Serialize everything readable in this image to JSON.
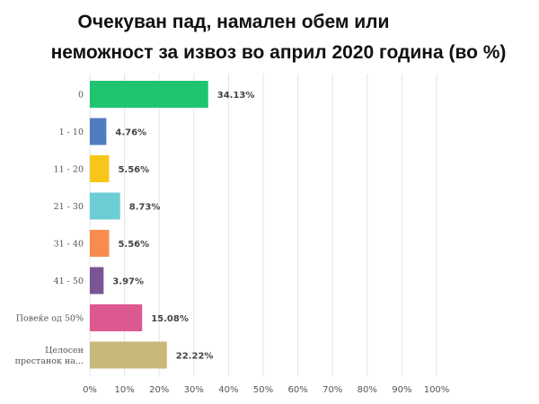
{
  "title_line1": "Очекуван пад, намален обем или",
  "title_line2": "неможност за извоз во април 2020 година (во %)",
  "chart_data": {
    "type": "bar",
    "orientation": "horizontal",
    "categories": [
      "0",
      "1 - 10",
      "11 - 20",
      "21 - 30",
      "31 - 40",
      "41 - 50",
      "Повеќе од 50%",
      "Целосен престанок на..."
    ],
    "category_lines": [
      [
        "0"
      ],
      [
        "1 - 10"
      ],
      [
        "11 - 20"
      ],
      [
        "21 - 30"
      ],
      [
        "31 - 40"
      ],
      [
        "41 - 50"
      ],
      [
        "Повеќе од 50%"
      ],
      [
        "Целосен",
        "престанок на..."
      ]
    ],
    "values": [
      34.13,
      4.76,
      5.56,
      8.73,
      5.56,
      3.97,
      15.08,
      22.22
    ],
    "value_labels": [
      "34.13%",
      "4.76%",
      "5.56%",
      "8.73%",
      "5.56%",
      "3.97%",
      "15.08%",
      "22.22%"
    ],
    "colors": [
      "#1ec46f",
      "#4f7dc0",
      "#f7c61a",
      "#6ccdd4",
      "#f98b4e",
      "#7a5593",
      "#dc5890",
      "#c8b87a"
    ],
    "xlim": [
      0,
      100
    ],
    "x_ticks": [
      "0%",
      "10%",
      "20%",
      "30%",
      "40%",
      "50%",
      "60%",
      "70%",
      "80%",
      "90%",
      "100%"
    ],
    "grid": true
  }
}
